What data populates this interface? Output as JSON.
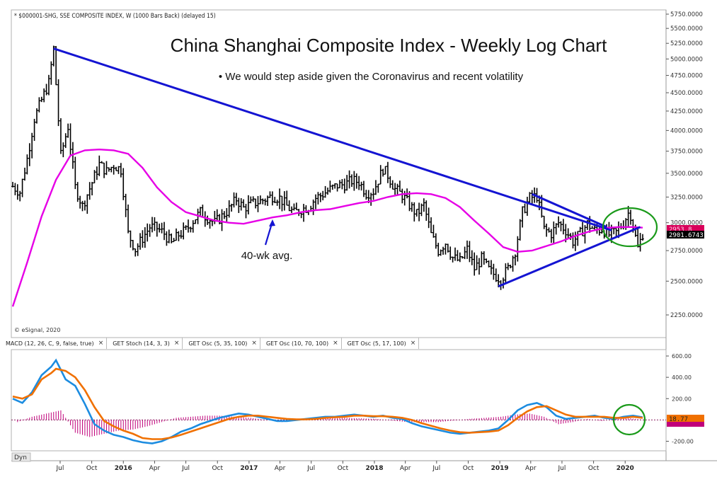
{
  "header": {
    "symbol_line": "* $000001-SHG, SSE COMPOSITE INDEX, W (1000 Bars Back) (delayed 15)",
    "copyright": "© eSignal, 2020",
    "dyn_label": "Dyn"
  },
  "indicator_tabs": [
    {
      "label": "MACD (12, 26, C, 9, false, true)",
      "close": "×"
    },
    {
      "label": "GET Stoch (14, 3, 3)",
      "close": "×"
    },
    {
      "label": "GET Osc (5, 35, 100)",
      "close": "×"
    },
    {
      "label": "GET Osc (10, 70, 100)",
      "close": "×"
    },
    {
      "label": "GET Osc (5, 17, 100)",
      "close": "×"
    }
  ],
  "colors": {
    "price_bars": "#000000",
    "moving_average": "#e600e6",
    "trendline": "#1414d2",
    "annotation_circle": "#1a9a1a",
    "macd_line": "#1c8ce0",
    "signal_line": "#f07000",
    "histogram": "#c0007a",
    "price_flag": "#d8005a",
    "macd_flag": "#f07000"
  },
  "chart_data": [
    {
      "type": "line",
      "title": "China Shanghai Composite Index - Weekly Log Chart",
      "subtitle": "• We would step aside given the Coronavirus and recent volatility",
      "annotation": "40-wk avg.",
      "log_scale": true,
      "grid": false,
      "y_axis_side": "right",
      "yticks": [
        "5750.0000",
        "5500.0000",
        "5250.0000",
        "5000.0000",
        "4750.0000",
        "4500.0000",
        "4250.0000",
        "4000.0000",
        "3750.0000",
        "3500.0000",
        "3250.0000",
        "3000.0000",
        "2750.0000",
        "2500.0000",
        "2250.0000"
      ],
      "ytick_values": [
        5750,
        5500,
        5250,
        5000,
        4750,
        4500,
        4250,
        4000,
        3750,
        3500,
        3250,
        3000,
        2750,
        2500,
        2250
      ],
      "xticks": [
        "Jul",
        "Oct",
        "2016",
        "Apr",
        "Jul",
        "Oct",
        "2017",
        "Apr",
        "Jul",
        "Oct",
        "2018",
        "Apr",
        "Jul",
        "Oct",
        "2019",
        "Apr",
        "Jul",
        "Oct",
        "2020"
      ],
      "xtick_dates": [
        "2015-07-01",
        "2015-10-01",
        "2016-01-01",
        "2016-04-01",
        "2016-07-01",
        "2016-10-01",
        "2017-01-01",
        "2017-04-01",
        "2017-07-01",
        "2017-10-01",
        "2018-01-01",
        "2018-04-01",
        "2018-07-01",
        "2018-10-01",
        "2019-01-01",
        "2019-04-01",
        "2019-07-01",
        "2019-10-01",
        "2020-01-01"
      ],
      "x_range": [
        "2015-02-13",
        "2020-02-21"
      ],
      "last_price_label": "2901.6743",
      "ma_label": "2953.8",
      "series": [
        {
          "style": "ohlc-bars",
          "x": [
            "2015-02-13",
            "2015-03-06",
            "2015-03-27",
            "2015-04-17",
            "2015-05-08",
            "2015-05-29",
            "2015-06-12",
            "2015-07-03",
            "2015-07-24",
            "2015-08-14",
            "2015-09-04",
            "2015-10-02",
            "2015-10-23",
            "2015-11-13",
            "2015-12-04",
            "2015-12-25",
            "2016-01-15",
            "2016-02-05",
            "2016-02-26",
            "2016-03-18",
            "2016-04-08",
            "2016-04-29",
            "2016-05-20",
            "2016-06-10",
            "2016-07-01",
            "2016-07-22",
            "2016-08-12",
            "2016-09-02",
            "2016-09-23",
            "2016-10-14",
            "2016-11-04",
            "2016-11-25",
            "2016-12-16",
            "2017-01-06",
            "2017-01-27",
            "2017-02-17",
            "2017-03-10",
            "2017-03-31",
            "2017-04-21",
            "2017-05-12",
            "2017-06-02",
            "2017-06-23",
            "2017-07-14",
            "2017-08-04",
            "2017-08-25",
            "2017-09-15",
            "2017-10-06",
            "2017-10-27",
            "2017-11-17",
            "2017-12-08",
            "2017-12-29",
            "2018-01-26",
            "2018-02-09",
            "2018-03-02",
            "2018-03-23",
            "2018-04-13",
            "2018-05-04",
            "2018-05-25",
            "2018-06-15",
            "2018-07-06",
            "2018-07-27",
            "2018-08-17",
            "2018-09-07",
            "2018-09-28",
            "2018-10-19",
            "2018-11-09",
            "2018-11-30",
            "2018-12-21",
            "2019-01-04",
            "2019-01-25",
            "2019-02-15",
            "2019-03-08",
            "2019-03-29",
            "2019-04-19",
            "2019-05-10",
            "2019-05-31",
            "2019-06-21",
            "2019-07-12",
            "2019-08-02",
            "2019-08-23",
            "2019-09-13",
            "2019-10-04",
            "2019-10-25",
            "2019-11-15",
            "2019-12-06",
            "2019-12-27",
            "2020-01-10",
            "2020-01-17",
            "2020-02-07",
            "2020-02-21"
          ],
          "values": [
            3360,
            3300,
            3660,
            4150,
            4400,
            4640,
            5166,
            3700,
            4050,
            3350,
            3160,
            3400,
            3600,
            3520,
            3590,
            3540,
            2900,
            2760,
            2860,
            2960,
            2950,
            2900,
            2810,
            2890,
            2930,
            3020,
            3100,
            3050,
            3000,
            3060,
            3130,
            3230,
            3140,
            3180,
            3200,
            3230,
            3260,
            3240,
            3160,
            3090,
            3130,
            3150,
            3240,
            3280,
            3330,
            3370,
            3380,
            3420,
            3410,
            3290,
            3310,
            3550,
            3480,
            3330,
            3270,
            3170,
            3080,
            3170,
            2890,
            2750,
            2820,
            2690,
            2660,
            2760,
            2600,
            2680,
            2590,
            2540,
            2514,
            2600,
            2750,
            3100,
            3240,
            3260,
            2940,
            2900,
            3000,
            2930,
            2830,
            2900,
            2990,
            2930,
            2940,
            2890,
            2910,
            3000,
            3090,
            3075,
            2770,
            2900
          ]
        },
        {
          "name": "40-wk avg.",
          "style": "line",
          "x": [
            "2015-02-13",
            "2015-03-27",
            "2015-05-08",
            "2015-06-19",
            "2015-07-31",
            "2015-09-11",
            "2015-10-23",
            "2015-12-04",
            "2016-01-15",
            "2016-02-26",
            "2016-04-08",
            "2016-05-20",
            "2016-07-01",
            "2016-08-12",
            "2016-09-23",
            "2016-11-04",
            "2016-12-16",
            "2017-01-27",
            "2017-03-10",
            "2017-04-21",
            "2017-06-02",
            "2017-07-14",
            "2017-08-25",
            "2017-10-06",
            "2017-11-17",
            "2017-12-29",
            "2018-02-09",
            "2018-03-23",
            "2018-05-04",
            "2018-06-15",
            "2018-07-27",
            "2018-09-07",
            "2018-10-19",
            "2018-11-30",
            "2019-01-11",
            "2019-02-22",
            "2019-04-05",
            "2019-05-17",
            "2019-06-28",
            "2019-08-09",
            "2019-09-20",
            "2019-11-01",
            "2019-12-13",
            "2020-01-24",
            "2020-02-21"
          ],
          "values": [
            2310,
            2650,
            3060,
            3430,
            3700,
            3760,
            3770,
            3760,
            3720,
            3560,
            3350,
            3200,
            3100,
            3060,
            3020,
            3000,
            2990,
            3020,
            3050,
            3070,
            3100,
            3120,
            3130,
            3160,
            3190,
            3210,
            3250,
            3280,
            3290,
            3280,
            3240,
            3150,
            3020,
            2900,
            2780,
            2740,
            2750,
            2790,
            2830,
            2880,
            2920,
            2950,
            2960,
            2960,
            2953.8
          ]
        },
        {
          "name": "Downtrend line",
          "style": "trendline",
          "x": [
            "2015-06-12",
            "2019-11-22"
          ],
          "values": [
            5166,
            2930
          ]
        },
        {
          "name": "Upper wedge line",
          "style": "trendline",
          "x": [
            "2019-04-05",
            "2019-11-08"
          ],
          "values": [
            3280,
            2960
          ]
        },
        {
          "name": "Lower wedge line",
          "style": "trendline",
          "x": [
            "2018-12-28",
            "2020-02-14"
          ],
          "values": [
            2460,
            2960
          ]
        }
      ]
    },
    {
      "type": "line",
      "title": "MACD (12, 26, C, 9, false, true)",
      "ylim": [
        -230,
        640
      ],
      "yticks": [
        "600.00",
        "400.00",
        "200.00",
        "-200.00"
      ],
      "ytick_values": [
        600,
        400,
        200,
        -200
      ],
      "zero_line": "dashed",
      "macd_label": "18.77",
      "series": [
        {
          "name": "MACD",
          "style": "line",
          "x": [
            "2015-02-13",
            "2015-03-13",
            "2015-04-10",
            "2015-05-08",
            "2015-06-05",
            "2015-06-19",
            "2015-07-17",
            "2015-08-14",
            "2015-09-11",
            "2015-10-09",
            "2015-11-06",
            "2015-12-04",
            "2016-01-01",
            "2016-01-29",
            "2016-02-26",
            "2016-03-25",
            "2016-04-22",
            "2016-05-20",
            "2016-06-17",
            "2016-07-15",
            "2016-08-12",
            "2016-09-09",
            "2016-10-07",
            "2016-11-04",
            "2016-12-02",
            "2016-12-30",
            "2017-01-27",
            "2017-02-24",
            "2017-03-24",
            "2017-04-21",
            "2017-05-19",
            "2017-06-16",
            "2017-07-14",
            "2017-08-11",
            "2017-09-08",
            "2017-10-06",
            "2017-11-03",
            "2017-12-01",
            "2017-12-29",
            "2018-01-26",
            "2018-02-23",
            "2018-03-23",
            "2018-04-20",
            "2018-05-18",
            "2018-06-15",
            "2018-07-13",
            "2018-08-10",
            "2018-09-07",
            "2018-10-05",
            "2018-11-02",
            "2018-11-30",
            "2018-12-28",
            "2019-01-25",
            "2019-02-22",
            "2019-03-22",
            "2019-04-19",
            "2019-05-17",
            "2019-06-14",
            "2019-07-12",
            "2019-08-09",
            "2019-09-06",
            "2019-10-04",
            "2019-11-01",
            "2019-11-29",
            "2019-12-27",
            "2020-01-24",
            "2020-02-21"
          ],
          "values": [
            200,
            160,
            260,
            420,
            500,
            560,
            380,
            320,
            150,
            -40,
            -100,
            -140,
            -160,
            -190,
            -210,
            -220,
            -200,
            -160,
            -110,
            -80,
            -40,
            -10,
            20,
            40,
            60,
            50,
            30,
            10,
            -10,
            -10,
            0,
            10,
            20,
            30,
            30,
            40,
            50,
            40,
            30,
            40,
            20,
            10,
            -30,
            -60,
            -80,
            -100,
            -120,
            -130,
            -120,
            -110,
            -100,
            -80,
            0,
            90,
            140,
            160,
            120,
            40,
            10,
            20,
            30,
            40,
            20,
            10,
            30,
            40,
            25
          ]
        },
        {
          "name": "Signal",
          "style": "line",
          "x": [
            "2015-02-13",
            "2015-03-13",
            "2015-04-10",
            "2015-05-08",
            "2015-06-05",
            "2015-06-19",
            "2015-07-17",
            "2015-08-14",
            "2015-09-11",
            "2015-10-09",
            "2015-11-06",
            "2015-12-04",
            "2016-01-01",
            "2016-01-29",
            "2016-02-26",
            "2016-03-25",
            "2016-04-22",
            "2016-05-20",
            "2016-06-17",
            "2016-07-15",
            "2016-08-12",
            "2016-09-09",
            "2016-10-07",
            "2016-11-04",
            "2016-12-02",
            "2016-12-30",
            "2017-01-27",
            "2017-02-24",
            "2017-03-24",
            "2017-04-21",
            "2017-05-19",
            "2017-06-16",
            "2017-07-14",
            "2017-08-11",
            "2017-09-08",
            "2017-10-06",
            "2017-11-03",
            "2017-12-01",
            "2017-12-29",
            "2018-01-26",
            "2018-02-23",
            "2018-03-23",
            "2018-04-20",
            "2018-05-18",
            "2018-06-15",
            "2018-07-13",
            "2018-08-10",
            "2018-09-07",
            "2018-10-05",
            "2018-11-02",
            "2018-11-30",
            "2018-12-28",
            "2019-01-25",
            "2019-02-22",
            "2019-03-22",
            "2019-04-19",
            "2019-05-17",
            "2019-06-14",
            "2019-07-12",
            "2019-08-09",
            "2019-09-06",
            "2019-10-04",
            "2019-11-01",
            "2019-11-29",
            "2019-12-27",
            "2020-01-24",
            "2020-02-21"
          ],
          "values": [
            220,
            200,
            240,
            380,
            440,
            480,
            460,
            400,
            280,
            120,
            -10,
            -60,
            -100,
            -130,
            -170,
            -180,
            -180,
            -165,
            -140,
            -110,
            -80,
            -50,
            -20,
            10,
            30,
            40,
            40,
            30,
            20,
            10,
            5,
            5,
            10,
            20,
            25,
            30,
            40,
            40,
            35,
            35,
            30,
            20,
            0,
            -30,
            -55,
            -80,
            -100,
            -115,
            -120,
            -115,
            -110,
            -100,
            -50,
            20,
            80,
            120,
            130,
            90,
            50,
            30,
            30,
            30,
            30,
            20,
            20,
            30,
            20
          ]
        },
        {
          "name": "Histogram",
          "style": "bar",
          "x": [
            "2015-02-27",
            "2015-04-10",
            "2015-05-22",
            "2015-07-03",
            "2015-08-14",
            "2015-09-25",
            "2015-11-06",
            "2015-12-18",
            "2016-01-29",
            "2016-03-11",
            "2016-04-22",
            "2016-06-03",
            "2016-07-15",
            "2016-08-26",
            "2016-10-07",
            "2017-01-06",
            "2017-04-07",
            "2017-07-07",
            "2017-10-06",
            "2018-01-05",
            "2018-04-06",
            "2018-07-06",
            "2018-10-05",
            "2019-01-04",
            "2019-02-15",
            "2019-03-29",
            "2019-05-10",
            "2019-06-21",
            "2019-08-02",
            "2019-09-13",
            "2019-10-25",
            "2019-12-06",
            "2020-01-17",
            "2020-02-14"
          ],
          "values": [
            -20,
            30,
            60,
            90,
            -120,
            -160,
            -130,
            -100,
            -90,
            -60,
            -20,
            20,
            30,
            40,
            40,
            20,
            -20,
            10,
            20,
            10,
            -20,
            -20,
            10,
            30,
            50,
            60,
            30,
            -40,
            -20,
            10,
            -10,
            10,
            15,
            5
          ]
        }
      ]
    }
  ]
}
